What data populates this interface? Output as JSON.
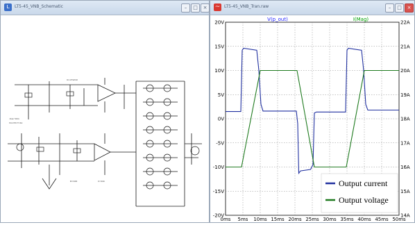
{
  "left_window": {
    "title": "LT5-45_VNB_Schematic",
    "schematic_notes": [
      ".tran 50m",
      "Vin=5V  f=1k",
      "U1 LT1210",
      "R=100",
      "C=10n"
    ]
  },
  "right_window": {
    "title": "LT5-45_VNB_Tran.raw",
    "icon": "waveform-icon"
  },
  "window_controls": {
    "minimize": "–",
    "maximize": "□",
    "close": "×"
  },
  "chart_data": {
    "type": "line",
    "x_label_ticks": [
      "0ms",
      "5ms",
      "10ms",
      "15ms",
      "20ms",
      "25ms",
      "30ms",
      "35ms",
      "40ms",
      "45ms",
      "50ms"
    ],
    "xlim": [
      0,
      50
    ],
    "left_axis": {
      "ticks": [
        "20V",
        "15V",
        "10V",
        "5V",
        "0V",
        "-5V",
        "-10V",
        "-15V",
        "-20V"
      ],
      "ylim": [
        -20,
        20
      ]
    },
    "right_axis": {
      "ticks": [
        "22A",
        "21A",
        "20A",
        "19A",
        "18A",
        "17A",
        "16A",
        "15A",
        "14A"
      ],
      "ylim": [
        14,
        22
      ]
    },
    "trace_headers": [
      {
        "label": "V(p_out)",
        "color": "#2020ff"
      },
      {
        "label": "I(Mag)",
        "color": "#00a000"
      }
    ],
    "grid": true,
    "legend_position": "bottom-right",
    "series": [
      {
        "name": "Output current",
        "color": "#1f2f9f",
        "axis": "left",
        "points": [
          [
            0,
            1.5
          ],
          [
            4.4,
            1.5
          ],
          [
            4.8,
            14.2
          ],
          [
            5.2,
            14.6
          ],
          [
            9.0,
            14.2
          ],
          [
            9.6,
            10
          ],
          [
            10.2,
            3
          ],
          [
            10.8,
            1.6
          ],
          [
            20.4,
            1.6
          ],
          [
            20.8,
            -1
          ],
          [
            21.1,
            -11.3
          ],
          [
            21.6,
            -10.8
          ],
          [
            24.5,
            -10.5
          ],
          [
            25.2,
            -9.5
          ],
          [
            25.6,
            1.2
          ],
          [
            26.2,
            1.4
          ],
          [
            34.6,
            1.4
          ],
          [
            35.0,
            14.2
          ],
          [
            35.4,
            14.6
          ],
          [
            39.2,
            14.2
          ],
          [
            39.8,
            10
          ],
          [
            40.4,
            3
          ],
          [
            41.0,
            1.8
          ],
          [
            50,
            1.8
          ]
        ]
      },
      {
        "name": "Output voltage",
        "color": "#1e7a1e",
        "axis": "right",
        "points": [
          [
            0,
            16
          ],
          [
            4.6,
            16
          ],
          [
            10,
            20
          ],
          [
            20.6,
            20
          ],
          [
            25.6,
            16
          ],
          [
            34.8,
            16
          ],
          [
            40,
            20
          ],
          [
            50,
            20
          ]
        ]
      }
    ]
  }
}
